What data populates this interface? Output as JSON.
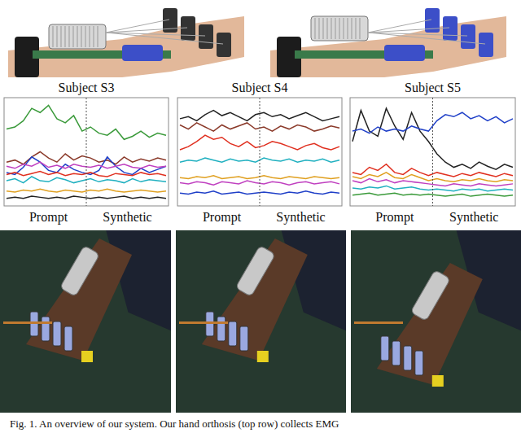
{
  "chart_data": [
    {
      "type": "line",
      "title": "Subject S3",
      "annotations": [
        "Prompt",
        "Synthetic"
      ],
      "tick_labels": false,
      "x": [
        1,
        2,
        3,
        4,
        5,
        6,
        7,
        8,
        9,
        10,
        11,
        12,
        13,
        14,
        15,
        16,
        17,
        18,
        19,
        20
      ],
      "xlim": [
        1,
        20
      ],
      "ylim": [
        0,
        100
      ],
      "series": [
        {
          "color": "#3a9a3a",
          "values": [
            72,
            74,
            80,
            92,
            88,
            95,
            82,
            78,
            85,
            70,
            74,
            68,
            66,
            72,
            62,
            65,
            70,
            64,
            68,
            66
          ]
        },
        {
          "color": "#8b3a2a",
          "values": [
            40,
            42,
            38,
            45,
            50,
            44,
            40,
            48,
            42,
            46,
            44,
            40,
            42,
            38,
            45,
            40,
            43,
            41,
            44,
            42
          ]
        },
        {
          "color": "#2040c8",
          "values": [
            30,
            28,
            35,
            45,
            40,
            32,
            30,
            38,
            33,
            30,
            28,
            32,
            45,
            36,
            30,
            28,
            34,
            30,
            33,
            36
          ]
        },
        {
          "color": "#c040c0",
          "values": [
            36,
            34,
            38,
            36,
            40,
            35,
            37,
            34,
            38,
            36,
            35,
            37,
            34,
            36,
            38,
            35,
            34,
            37,
            35,
            36
          ]
        },
        {
          "color": "#e03020",
          "values": [
            28,
            30,
            27,
            29,
            31,
            28,
            30,
            27,
            29,
            28,
            30,
            27,
            26,
            29,
            28,
            27,
            30,
            28,
            29,
            27
          ]
        },
        {
          "color": "#20b0c0",
          "values": [
            22,
            24,
            20,
            26,
            22,
            21,
            25,
            23,
            20,
            22,
            24,
            21,
            23,
            22,
            20,
            24,
            21,
            23,
            22,
            21
          ]
        },
        {
          "color": "#e0a020",
          "values": [
            12,
            11,
            13,
            12,
            14,
            12,
            11,
            13,
            12,
            11,
            13,
            12,
            14,
            12,
            11,
            12,
            13,
            12,
            11,
            12
          ]
        },
        {
          "color": "#222222",
          "values": [
            5,
            6,
            5,
            7,
            6,
            5,
            6,
            5,
            7,
            6,
            5,
            6,
            5,
            6,
            7,
            5,
            6,
            5,
            6,
            5
          ]
        }
      ]
    },
    {
      "type": "line",
      "title": "Subject S4",
      "annotations": [
        "Prompt",
        "Synthetic"
      ],
      "tick_labels": false,
      "x": [
        1,
        2,
        3,
        4,
        5,
        6,
        7,
        8,
        9,
        10,
        11,
        12,
        13,
        14,
        15,
        16,
        17,
        18,
        19,
        20
      ],
      "xlim": [
        1,
        20
      ],
      "ylim": [
        0,
        100
      ],
      "series": [
        {
          "color": "#222222",
          "values": [
            82,
            84,
            80,
            86,
            90,
            85,
            88,
            84,
            80,
            86,
            88,
            84,
            86,
            82,
            85,
            88,
            84,
            80,
            82,
            84
          ]
        },
        {
          "color": "#8b3a2a",
          "values": [
            76,
            72,
            78,
            74,
            70,
            76,
            72,
            75,
            78,
            72,
            74,
            70,
            75,
            72,
            76,
            74,
            70,
            72,
            75,
            73
          ]
        },
        {
          "color": "#e03020",
          "values": [
            52,
            55,
            60,
            66,
            62,
            64,
            58,
            55,
            60,
            54,
            56,
            60,
            58,
            55,
            52,
            56,
            58,
            54,
            52,
            55
          ]
        },
        {
          "color": "#20b0c0",
          "values": [
            40,
            42,
            41,
            44,
            42,
            40,
            43,
            41,
            42,
            40,
            44,
            42,
            41,
            43,
            40,
            42,
            41,
            43,
            40,
            42
          ]
        },
        {
          "color": "#e0a020",
          "values": [
            25,
            24,
            26,
            25,
            27,
            24,
            25,
            26,
            24,
            25,
            27,
            25,
            24,
            26,
            25,
            24,
            26,
            25,
            24,
            25
          ]
        },
        {
          "color": "#c040c0",
          "values": [
            20,
            19,
            21,
            20,
            18,
            21,
            20,
            19,
            22,
            20,
            19,
            21,
            20,
            18,
            20,
            21,
            19,
            20,
            21,
            19
          ]
        },
        {
          "color": "#2040c8",
          "values": [
            10,
            9,
            11,
            10,
            12,
            9,
            10,
            11,
            9,
            10,
            11,
            10,
            9,
            11,
            10,
            12,
            10,
            9,
            11,
            10
          ]
        }
      ]
    },
    {
      "type": "line",
      "title": "Subject S5",
      "annotations": [
        "Prompt",
        "Synthetic"
      ],
      "tick_labels": false,
      "x": [
        1,
        2,
        3,
        4,
        5,
        6,
        7,
        8,
        9,
        10,
        11,
        12,
        13,
        14,
        15,
        16,
        17,
        18,
        19,
        20
      ],
      "xlim": [
        1,
        20
      ],
      "ylim": [
        0,
        100
      ],
      "series": [
        {
          "color": "#222222",
          "values": [
            60,
            90,
            70,
            65,
            92,
            75,
            62,
            88,
            70,
            60,
            48,
            40,
            35,
            38,
            34,
            40,
            36,
            33,
            38,
            35
          ]
        },
        {
          "color": "#2040c8",
          "values": [
            70,
            72,
            68,
            74,
            70,
            72,
            70,
            75,
            72,
            70,
            80,
            86,
            84,
            88,
            82,
            85,
            80,
            84,
            78,
            82
          ]
        },
        {
          "color": "#e03020",
          "values": [
            30,
            28,
            35,
            32,
            38,
            30,
            28,
            34,
            30,
            27,
            30,
            28,
            26,
            29,
            27,
            30,
            28,
            26,
            29,
            27
          ]
        },
        {
          "color": "#e0a020",
          "values": [
            26,
            24,
            28,
            26,
            30,
            25,
            24,
            28,
            25,
            22,
            24,
            22,
            21,
            23,
            22,
            24,
            22,
            21,
            23,
            22
          ]
        },
        {
          "color": "#c040c0",
          "values": [
            22,
            20,
            24,
            21,
            23,
            20,
            22,
            21,
            20,
            19,
            18,
            17,
            19,
            18,
            17,
            19,
            18,
            17,
            18,
            19
          ]
        },
        {
          "color": "#20b0c0",
          "values": [
            15,
            14,
            16,
            15,
            17,
            14,
            15,
            16,
            14,
            13,
            14,
            13,
            12,
            14,
            13,
            14,
            12,
            13,
            14,
            13
          ]
        },
        {
          "color": "#3a9a3a",
          "values": [
            8,
            9,
            10,
            8,
            9,
            10,
            8,
            9,
            8,
            9,
            8,
            7,
            8,
            9,
            7,
            8,
            9,
            8,
            7,
            8
          ]
        }
      ]
    }
  ],
  "caption": "Fig. 1.   An overview of our system. Our hand orthosis (top row) collects EMG"
}
